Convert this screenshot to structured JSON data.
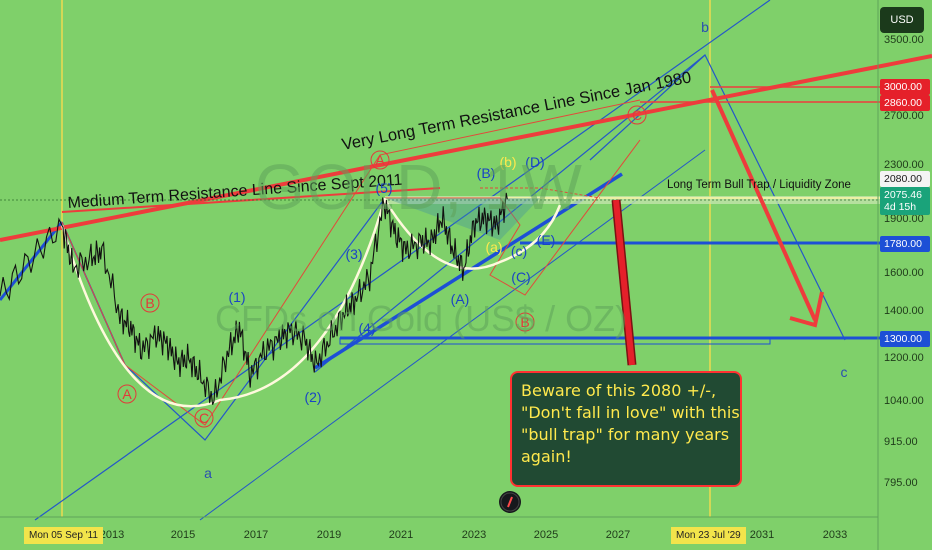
{
  "chart_data": {
    "type": "line",
    "title": "",
    "xlabel": "",
    "ylabel": "",
    "currency": "USD",
    "x_ticks": [
      "2013",
      "2015",
      "2017",
      "2019",
      "2021",
      "2023",
      "2025",
      "2027",
      "2031",
      "2033"
    ],
    "y_ticks": [
      "3500.00",
      "2700.00",
      "2300.00",
      "1900.00",
      "1600.00",
      "1400.00",
      "1200.00",
      "1040.00",
      "915.00",
      "795.00"
    ],
    "price_tags": [
      {
        "label": "3000.00",
        "color": "#e5202a"
      },
      {
        "label": "2860.00",
        "color": "#e5202a"
      },
      {
        "label": "2080.00",
        "color": "#f4f4f4",
        "text": "#1a1a1a"
      },
      {
        "label": "2075.46",
        "sub": "4d 15h",
        "color": "#1aa37a"
      },
      {
        "label": "1780.00",
        "color": "#1d4fd6"
      },
      {
        "label": "1300.00",
        "color": "#1d4fd6"
      }
    ],
    "date_tags": [
      "Mon 05 Sep '11",
      "Mon 23 Jul '29"
    ],
    "annotations": {
      "long_line": "Very Long Term Resistance Line Since Jan 1980",
      "medium_line": "Medium Term Resistance Line Since Sept 2011",
      "zone": "Long Term Bull Trap / Liquidity Zone",
      "watermark_1": "GOLD, 1W",
      "watermark_2": "CFDs on Gold (US$ / OZ)",
      "callout": [
        "Beware of this 2080 +/-,",
        "\"Don't fall in love\" with this",
        "\"bull trap\" for many years",
        "again!"
      ]
    },
    "wave_labels_red": [
      "A",
      "B",
      "C",
      "A",
      "B",
      "C"
    ],
    "wave_labels_blue": [
      "1",
      "2",
      "3",
      "4",
      "5",
      "A",
      "B",
      "C",
      "D",
      "E",
      "a",
      "b",
      "c"
    ],
    "wave_labels_yellow": [
      "a",
      "b"
    ],
    "wave_labels_mixed": [
      "c"
    ],
    "price_series_x": [
      2011.7,
      2012.0,
      2012.5,
      2012.8,
      2013.3,
      2013.6,
      2013.9,
      2014.3,
      2014.6,
      2014.9,
      2015.2,
      2015.5,
      2015.9,
      2016.3,
      2016.6,
      2016.9,
      2017.3,
      2017.7,
      2018.0,
      2018.4,
      2018.7,
      2019.1,
      2019.5,
      2019.8,
      2020.2,
      2020.6,
      2020.9,
      2021.2,
      2021.6,
      2021.9,
      2022.2,
      2022.5,
      2022.8,
      2023.1,
      2023.4,
      2023.7,
      2024.0
    ],
    "price_series_y": [
      1900,
      1650,
      1700,
      1750,
      1400,
      1350,
      1250,
      1320,
      1280,
      1200,
      1220,
      1150,
      1060,
      1250,
      1350,
      1150,
      1250,
      1300,
      1340,
      1300,
      1190,
      1300,
      1420,
      1480,
      1600,
      2050,
      1850,
      1750,
      1800,
      1800,
      1950,
      1750,
      1640,
      1920,
      1950,
      1900,
      2075
    ]
  }
}
